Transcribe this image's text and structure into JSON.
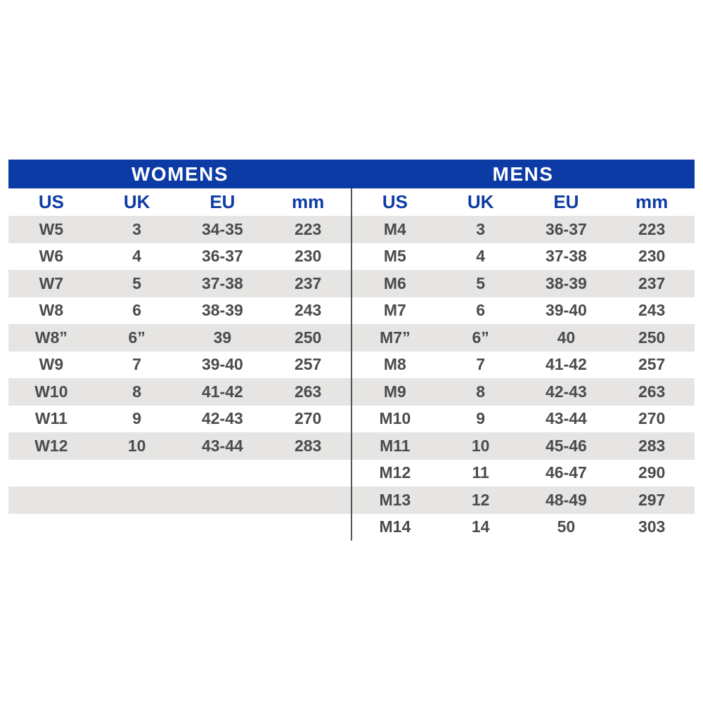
{
  "colors": {
    "header_blue": "#0d3ba6",
    "row_stripe_gray": "#e6e5e4",
    "divider_gray": "#55565a",
    "data_text_gray": "#4b4b4d",
    "title_text_white": "#ffffff"
  },
  "tables": {
    "womens": {
      "title": "WOMENS",
      "columns": [
        "US",
        "UK",
        "EU",
        "mm"
      ],
      "rows": [
        [
          "W5",
          "3",
          "34-35",
          "223"
        ],
        [
          "W6",
          "4",
          "36-37",
          "230"
        ],
        [
          "W7",
          "5",
          "37-38",
          "237"
        ],
        [
          "W8",
          "6",
          "38-39",
          "243"
        ],
        [
          "W8”",
          "6”",
          "39",
          "250"
        ],
        [
          "W9",
          "7",
          "39-40",
          "257"
        ],
        [
          "W10",
          "8",
          "41-42",
          "263"
        ],
        [
          "W11",
          "9",
          "42-43",
          "270"
        ],
        [
          "W12",
          "10",
          "43-44",
          "283"
        ],
        [
          "",
          "",
          "",
          ""
        ],
        [
          "",
          "",
          "",
          ""
        ],
        [
          "",
          "",
          "",
          ""
        ]
      ]
    },
    "mens": {
      "title": "MENS",
      "columns": [
        "US",
        "UK",
        "EU",
        "mm"
      ],
      "rows": [
        [
          "M4",
          "3",
          "36-37",
          "223"
        ],
        [
          "M5",
          "4",
          "37-38",
          "230"
        ],
        [
          "M6",
          "5",
          "38-39",
          "237"
        ],
        [
          "M7",
          "6",
          "39-40",
          "243"
        ],
        [
          "M7”",
          "6”",
          "40",
          "250"
        ],
        [
          "M8",
          "7",
          "41-42",
          "257"
        ],
        [
          "M9",
          "8",
          "42-43",
          "263"
        ],
        [
          "M10",
          "9",
          "43-44",
          "270"
        ],
        [
          "M11",
          "10",
          "45-46",
          "283"
        ],
        [
          "M12",
          "11",
          "46-47",
          "290"
        ],
        [
          "M13",
          "12",
          "48-49",
          "297"
        ],
        [
          "M14",
          "14",
          "50",
          "303"
        ]
      ]
    }
  }
}
